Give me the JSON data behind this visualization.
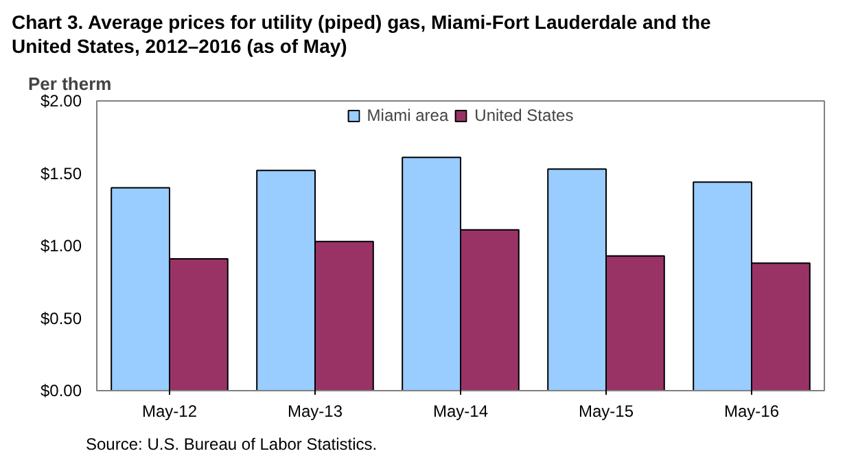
{
  "chart_data": {
    "type": "bar",
    "title": "Chart 3. Average prices for utility (piped) gas, Miami-Fort Lauderdale and the United States, 2012–2016 (as of May)",
    "ylabel": "Per therm",
    "categories": [
      "May-12",
      "May-13",
      "May-14",
      "May-15",
      "May-16"
    ],
    "series": [
      {
        "name": "Miami area",
        "color": "#99ccff",
        "values": [
          1.4,
          1.52,
          1.61,
          1.53,
          1.44
        ]
      },
      {
        "name": "United States",
        "color": "#993366",
        "values": [
          0.91,
          1.03,
          1.11,
          0.93,
          0.88
        ]
      }
    ],
    "ylim": [
      0,
      2
    ],
    "yticks": [
      {
        "value": 0,
        "label": "$0.00"
      },
      {
        "value": 0.5,
        "label": "$0.50"
      },
      {
        "value": 1,
        "label": "$1.00"
      },
      {
        "value": 1.5,
        "label": "$1.50"
      },
      {
        "value": 2,
        "label": "$2.00"
      }
    ],
    "grid": false,
    "legend": "top",
    "annotations": [
      "Source: U.S. Bureau of Labor Statistics."
    ]
  }
}
